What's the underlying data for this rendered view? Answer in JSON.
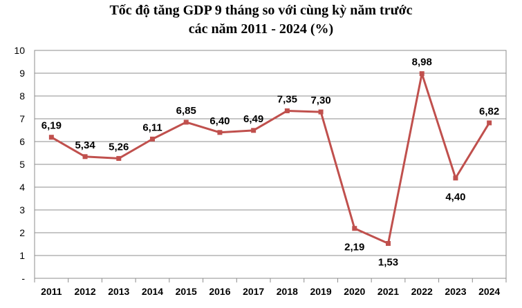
{
  "chart_data": {
    "type": "line",
    "title_line1": "Tốc độ tăng GDP 9 tháng so với cùng kỳ năm trước",
    "title_line2": "các năm 2011 - 2024 (%)",
    "categories": [
      "2011",
      "2012",
      "2013",
      "2014",
      "2015",
      "2016",
      "2017",
      "2018",
      "2019",
      "2020",
      "2021",
      "2022",
      "2023",
      "2024"
    ],
    "values": [
      6.19,
      5.34,
      5.26,
      6.11,
      6.85,
      6.4,
      6.49,
      7.35,
      7.3,
      2.19,
      1.53,
      8.98,
      4.4,
      6.82
    ],
    "data_labels": [
      "6,19",
      "5,34",
      "5,26",
      "6,11",
      "6,85",
      "6,40",
      "6,49",
      "7,35",
      "7,30",
      "2,19",
      "1,53",
      "8,98",
      "4,40",
      "6,82"
    ],
    "y_tick_labels": [
      "-",
      "1",
      "2",
      "3",
      "4",
      "5",
      "6",
      "7",
      "8",
      "9",
      "10"
    ],
    "ylim": [
      0,
      10
    ],
    "grid": true,
    "legend": "none",
    "line_color": "#c0504d"
  }
}
